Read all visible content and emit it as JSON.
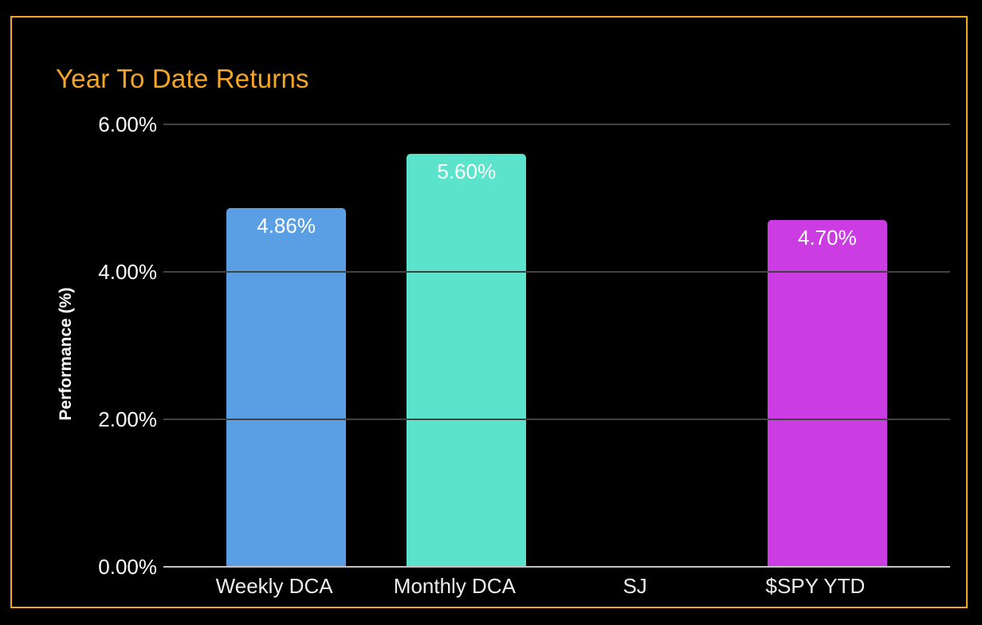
{
  "page": {
    "background_color": "#000000",
    "frame_border_color": "#F5A623"
  },
  "chart_data": {
    "type": "bar",
    "title": "Year To Date Returns",
    "title_color": "#F5A623",
    "xlabel": "",
    "ylabel": "Performance (%)",
    "ylim": [
      0,
      6
    ],
    "grid": true,
    "legend": "none",
    "grid_color": "#424242",
    "axis_line_color": "#C2C2C2",
    "text_color": "#FFFFFF",
    "yticks": [
      {
        "value": 6,
        "label": "6.00%"
      },
      {
        "value": 4,
        "label": "4.00%"
      },
      {
        "value": 2,
        "label": "2.00%"
      },
      {
        "value": 0,
        "label": "0.00%"
      }
    ],
    "categories": [
      "Weekly DCA",
      "Monthly DCA",
      "SJ",
      "$SPY YTD"
    ],
    "values": [
      4.86,
      5.6,
      0,
      4.7
    ],
    "value_labels": [
      "4.86%",
      "5.60%",
      null,
      "4.70%"
    ],
    "colors": [
      "#5A9EE3",
      "#5CE3CB",
      null,
      "#CC3CE3"
    ]
  }
}
